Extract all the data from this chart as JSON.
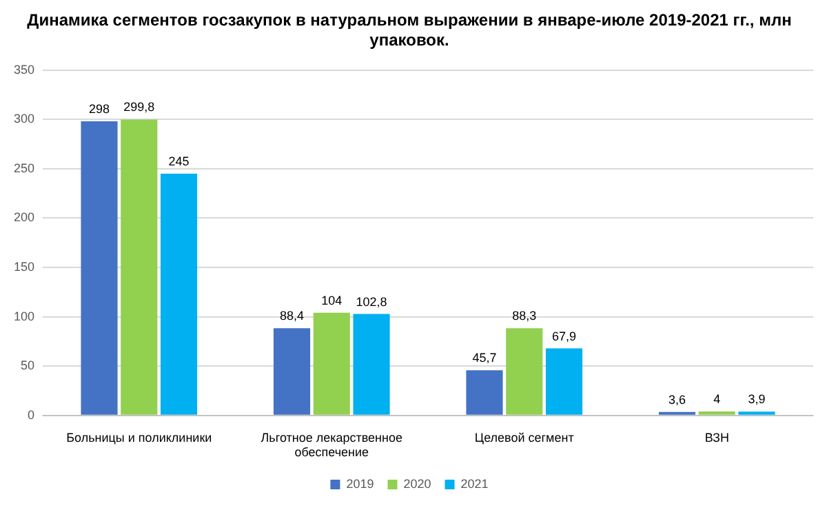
{
  "chart_data": {
    "type": "bar",
    "title": "Динамика сегментов госзакупок в натуральном выражении в январе-июле 2019-2021 гг., млн упаковок.",
    "categories": [
      "Больницы и поликлиники",
      "Льготное лекарственное обеспечение",
      "Целевой сегмент",
      "ВЗН"
    ],
    "series": [
      {
        "name": "2019",
        "color": "#4472c4",
        "values": [
          298,
          88.4,
          45.7,
          3.6
        ],
        "value_labels": [
          "298",
          "88,4",
          "45,7",
          "3,6"
        ]
      },
      {
        "name": "2020",
        "color": "#92d050",
        "values": [
          299.8,
          104,
          88.3,
          4
        ],
        "value_labels": [
          "299,8",
          "104",
          "88,3",
          "4"
        ]
      },
      {
        "name": "2021",
        "color": "#00b0f0",
        "values": [
          245,
          102.8,
          67.9,
          3.9
        ],
        "value_labels": [
          "245",
          "102,8",
          "67,9",
          "3,9"
        ]
      }
    ],
    "ylim": [
      0,
      350
    ],
    "yticks": [
      0,
      50,
      100,
      150,
      200,
      250,
      300,
      350
    ],
    "grid": "y",
    "legend": "bottom"
  }
}
